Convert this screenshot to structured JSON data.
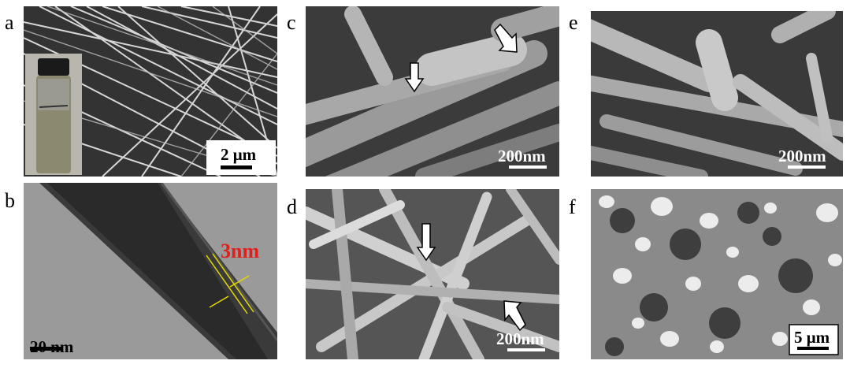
{
  "panels": [
    {
      "id": "a",
      "label": "a",
      "scale": "2 μm",
      "bg": "#2a2a2a"
    },
    {
      "id": "b",
      "label": "b",
      "scale": "20 nm",
      "annotation": "3nm",
      "annotation_color": "#e0201c",
      "bg": "#8a8a8a"
    },
    {
      "id": "c",
      "label": "c",
      "scale": "200nm",
      "bg": "#3b3b3b"
    },
    {
      "id": "d",
      "label": "d",
      "scale": "200nm",
      "bg": "#555555"
    },
    {
      "id": "e",
      "label": "e",
      "scale": "200nm",
      "bg": "#3a3a3a"
    },
    {
      "id": "f",
      "label": "f",
      "scale": "5 μm",
      "bg": "#7a7a7a"
    }
  ]
}
